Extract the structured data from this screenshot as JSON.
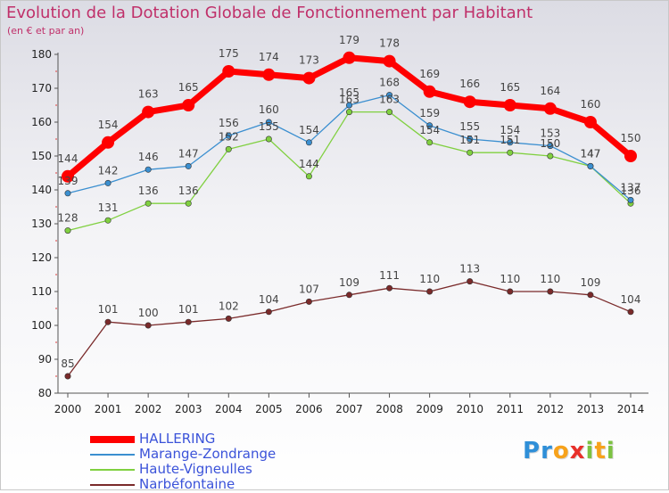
{
  "title": "Evolution de la Dotation Globale de Fonctionnement par Habitant",
  "subtitle": "(en € et par an)",
  "logo": {
    "letters": [
      "P",
      "r",
      "o",
      "x",
      "i",
      "t",
      "i"
    ],
    "colors": [
      "#2f8fd8",
      "#2f8fd8",
      "#f7a21b",
      "#e8302a",
      "#7cc242",
      "#f7a21b",
      "#7cc242"
    ]
  },
  "chart_data": {
    "type": "line",
    "x": [
      "2000",
      "2001",
      "2002",
      "2003",
      "2004",
      "2005",
      "2006",
      "2007",
      "2008",
      "2009",
      "2010",
      "2011",
      "2012",
      "2013",
      "2014"
    ],
    "ylim": [
      80,
      180
    ],
    "yticks": [
      80,
      90,
      100,
      110,
      120,
      130,
      140,
      150,
      160,
      170,
      180
    ],
    "grid": false,
    "legend_position": "bottom-left",
    "series": [
      {
        "name": "HALLERING",
        "color": "#ff0000",
        "values": [
          144,
          154,
          163,
          165,
          175,
          174,
          173,
          179,
          178,
          169,
          166,
          165,
          164,
          160,
          150
        ]
      },
      {
        "name": "Marange-Zondrange",
        "color": "#3b8fd0",
        "values": [
          139,
          142,
          146,
          147,
          156,
          160,
          154,
          165,
          168,
          159,
          155,
          154,
          153,
          147,
          137
        ]
      },
      {
        "name": "Haute-Vigneulles",
        "color": "#80d040",
        "values": [
          128,
          131,
          136,
          136,
          152,
          155,
          144,
          163,
          163,
          154,
          151,
          151,
          150,
          147,
          136
        ]
      },
      {
        "name": "Narbéfontaine",
        "color": "#7a2a2a",
        "values": [
          85,
          101,
          100,
          101,
          102,
          104,
          107,
          109,
          111,
          110,
          113,
          110,
          110,
          109,
          104
        ]
      }
    ]
  }
}
